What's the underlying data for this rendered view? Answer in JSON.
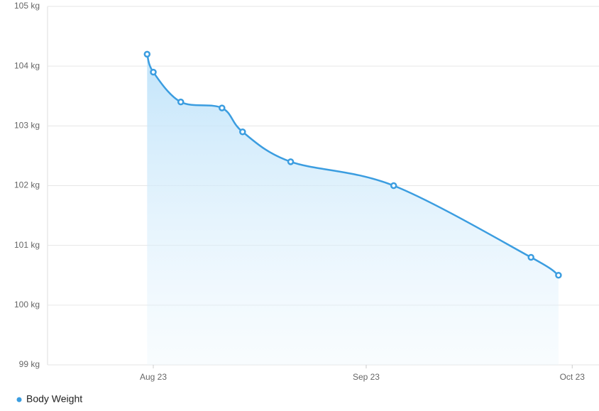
{
  "chart_data": {
    "type": "area",
    "series": [
      {
        "name": "Body Weight",
        "color": "#3b9de0",
        "x": [
          -0.9,
          0,
          4,
          10,
          13,
          20,
          35,
          55,
          59
        ],
        "values": [
          104.2,
          103.9,
          103.4,
          103.3,
          102.9,
          102.4,
          102.0,
          100.8,
          100.5
        ]
      }
    ],
    "xlim": [
      -15.4,
      64.9
    ],
    "xticks": [
      {
        "value": 0,
        "label": "Aug 23"
      },
      {
        "value": 31,
        "label": "Sep 23"
      },
      {
        "value": 61,
        "label": "Oct 23"
      }
    ],
    "ylim": [
      99,
      105
    ],
    "yticks": [
      {
        "value": 99,
        "label": "99 kg"
      },
      {
        "value": 100,
        "label": "100 kg"
      },
      {
        "value": 101,
        "label": "101 kg"
      },
      {
        "value": 102,
        "label": "102 kg"
      },
      {
        "value": 103,
        "label": "103 kg"
      },
      {
        "value": 104,
        "label": "104 kg"
      },
      {
        "value": 105,
        "label": "105 kg"
      }
    ],
    "grid": true,
    "legend": "bottom-left"
  }
}
